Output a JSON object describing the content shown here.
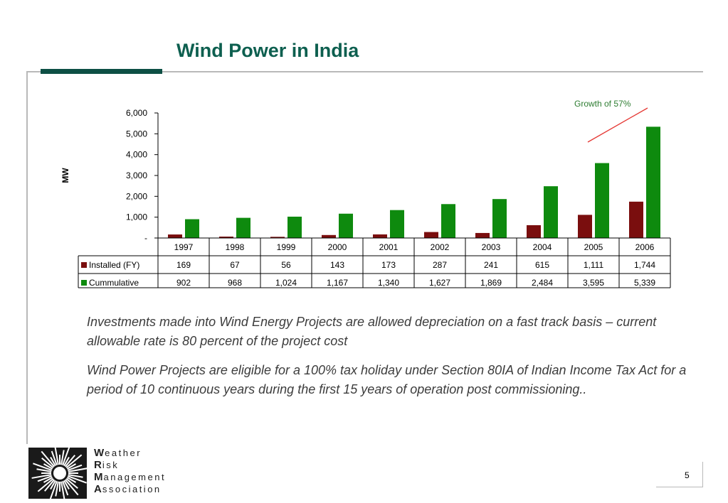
{
  "slide": {
    "title": "Wind Power in India",
    "page_number": "5",
    "paragraph1": "Investments made into Wind Energy Projects are allowed depreciation on a fast track basis – current allowable rate is 80 percent of the project cost",
    "paragraph2": "Wind Power Projects are eligible for a 100% tax holiday under Section 80IA of Indian Income Tax Act for a period of 10 continuous years during the first 15 years of operation post commissioning.."
  },
  "logo": {
    "lines": [
      {
        "initial": "W",
        "rest": "eather"
      },
      {
        "initial": "R",
        "rest": "isk"
      },
      {
        "initial": "M",
        "rest": "anagement"
      },
      {
        "initial": "A",
        "rest": "ssociation"
      }
    ]
  },
  "chart_data": {
    "type": "bar",
    "ylabel": "MW",
    "ylim": [
      0,
      6000
    ],
    "yticks": [
      "-",
      "1,000",
      "2,000",
      "3,000",
      "4,000",
      "5,000",
      "6,000"
    ],
    "categories": [
      "1997",
      "1998",
      "1999",
      "2000",
      "2001",
      "2002",
      "2003",
      "2004",
      "2005",
      "2006"
    ],
    "series": [
      {
        "name": "Installed (FY)",
        "color": "#7a0e0e",
        "values": [
          169,
          67,
          56,
          143,
          173,
          287,
          241,
          615,
          1111,
          1744
        ],
        "labels": [
          "169",
          "67",
          "56",
          "143",
          "173",
          "287",
          "241",
          "615",
          "1,111",
          "1,744"
        ]
      },
      {
        "name": "Cummulative",
        "color": "#0e8a0e",
        "values": [
          902,
          968,
          1024,
          1167,
          1340,
          1627,
          1869,
          2484,
          3595,
          5339
        ],
        "labels": [
          "902",
          "968",
          "1,024",
          "1,167",
          "1,340",
          "1,627",
          "1,869",
          "2,484",
          "3,595",
          "5,339"
        ]
      }
    ],
    "legend": "data-table",
    "annotation": {
      "text": "Growth of 57%",
      "color": "#2e7d32",
      "arrow_color": "#e53935"
    }
  }
}
